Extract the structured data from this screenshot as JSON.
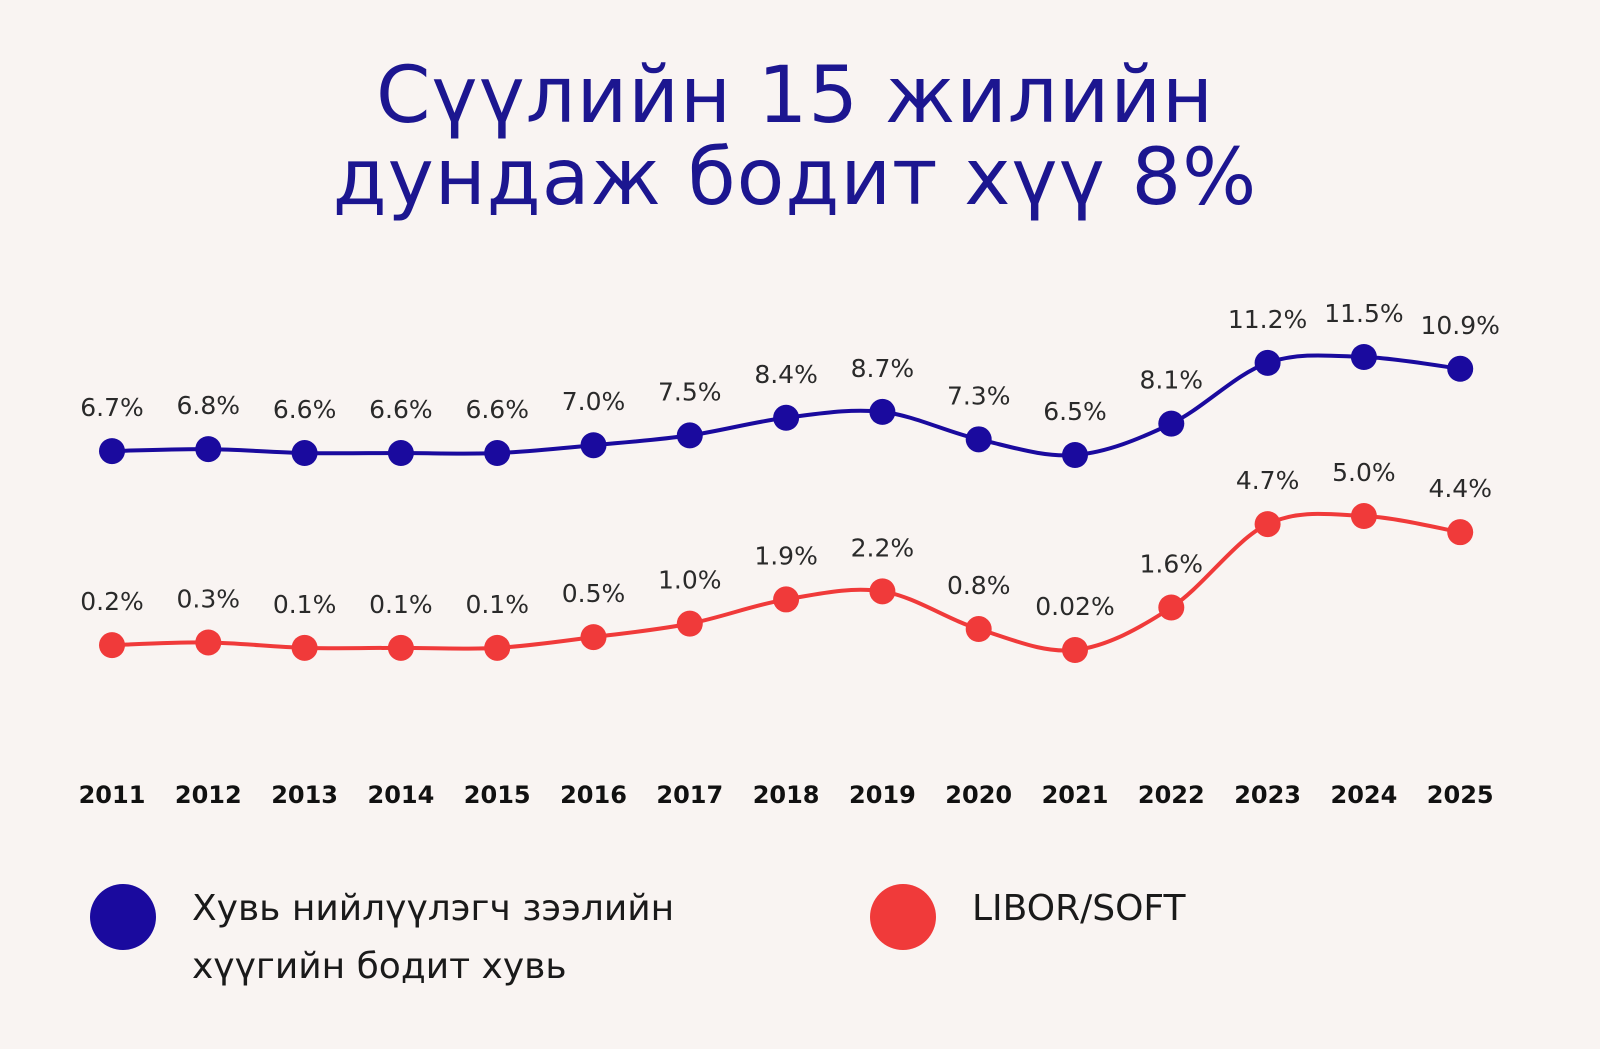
{
  "title": {
    "line1": "Сүүлийн 15 жилийн",
    "line2": "дундаж бодит хүү 8%"
  },
  "chart_data": {
    "type": "line",
    "title": "Сүүлийн 15 жилийн дундаж бодит хүү 8%",
    "x": [
      "2011",
      "2012",
      "2013",
      "2014",
      "2015",
      "2016",
      "2017",
      "2018",
      "2019",
      "2020",
      "2021",
      "2022",
      "2023",
      "2024",
      "2025"
    ],
    "series": [
      {
        "name": "Хувь нийлүүлэгч зээлийн хүүгийн бодит хувь",
        "color": "#1a0a9e",
        "values": [
          6.7,
          6.8,
          6.6,
          6.6,
          6.6,
          7.0,
          7.5,
          8.4,
          8.7,
          7.3,
          6.5,
          8.1,
          11.2,
          11.5,
          10.9
        ],
        "labels": [
          "6.7%",
          "6.8%",
          "6.6%",
          "6.6%",
          "6.6%",
          "7.0%",
          "7.5%",
          "8.4%",
          "8.7%",
          "7.3%",
          "6.5%",
          "8.1%",
          "11.2%",
          "11.5%",
          "10.9%"
        ]
      },
      {
        "name": "LIBOR/SOFT",
        "color": "#f03a3a",
        "values": [
          0.2,
          0.3,
          0.1,
          0.1,
          0.1,
          0.5,
          1.0,
          1.9,
          2.2,
          0.8,
          0.02,
          1.6,
          4.7,
          5.0,
          4.4
        ],
        "labels": [
          "0.2%",
          "0.3%",
          "0.1%",
          "0.1%",
          "0.1%",
          "0.5%",
          "1.0%",
          "1.9%",
          "2.2%",
          "0.8%",
          "0.02%",
          "1.6%",
          "4.7%",
          "5.0%",
          "4.4%"
        ]
      }
    ],
    "grid": false,
    "axes_visible": false,
    "legend_position": "bottom"
  },
  "legend": [
    {
      "label": "Хувь нийлүүлэгч зээлийн хүүгийн бодит хувь",
      "color": "#1a0a9e"
    },
    {
      "label": "LIBOR/SOFT",
      "color": "#f03a3a"
    }
  ]
}
